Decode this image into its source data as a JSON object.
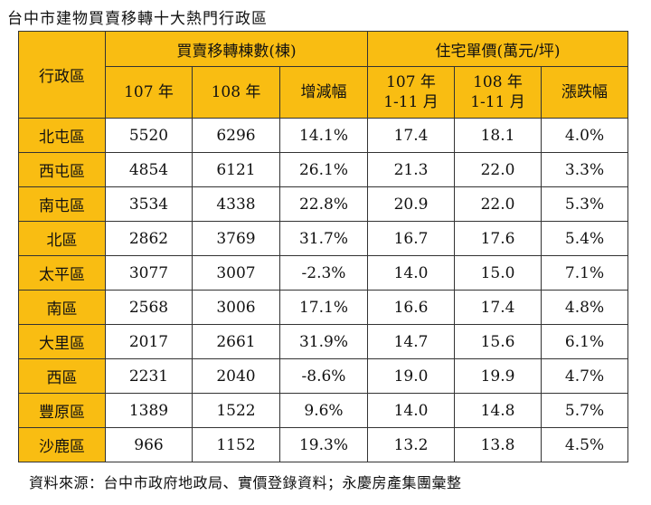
{
  "title": "台中市建物買賣移轉十大熱門行政區",
  "header": {
    "district": "行政區",
    "group1": "買賣移轉棟數(棟)",
    "group2": "住宅單價(萬元/坪)",
    "g1_col1": "107 年",
    "g1_col2": "108 年",
    "g1_col3": "增減幅",
    "g2_col1_line1": "107 年",
    "g2_col1_line2": "1-11 月",
    "g2_col2_line1": "108 年",
    "g2_col2_line2": "1-11 月",
    "g2_col3": "漲跌幅"
  },
  "rows": [
    [
      "北屯區",
      "5520",
      "6296",
      "14.1%",
      "17.4",
      "18.1",
      "4.0%"
    ],
    [
      "西屯區",
      "4854",
      "6121",
      "26.1%",
      "21.3",
      "22.0",
      "3.3%"
    ],
    [
      "南屯區",
      "3534",
      "4338",
      "22.8%",
      "20.9",
      "22.0",
      "5.3%"
    ],
    [
      "北區",
      "2862",
      "3769",
      "31.7%",
      "16.7",
      "17.6",
      "5.4%"
    ],
    [
      "太平區",
      "3077",
      "3007",
      "-2.3%",
      "14.0",
      "15.0",
      "7.1%"
    ],
    [
      "南區",
      "2568",
      "3006",
      "17.1%",
      "16.6",
      "17.4",
      "4.8%"
    ],
    [
      "大里區",
      "2017",
      "2661",
      "31.9%",
      "14.7",
      "15.6",
      "6.1%"
    ],
    [
      "西區",
      "2231",
      "2040",
      "-8.6%",
      "19.0",
      "19.9",
      "4.7%"
    ],
    [
      "豐原區",
      "1389",
      "1522",
      "9.6%",
      "14.0",
      "14.8",
      "5.7%"
    ],
    [
      "沙鹿區",
      "966",
      "1152",
      "19.3%",
      "13.2",
      "13.8",
      "4.5%"
    ]
  ],
  "source": "資料來源：台中市政府地政局、實價登錄資料；永慶房產集團彙整"
}
